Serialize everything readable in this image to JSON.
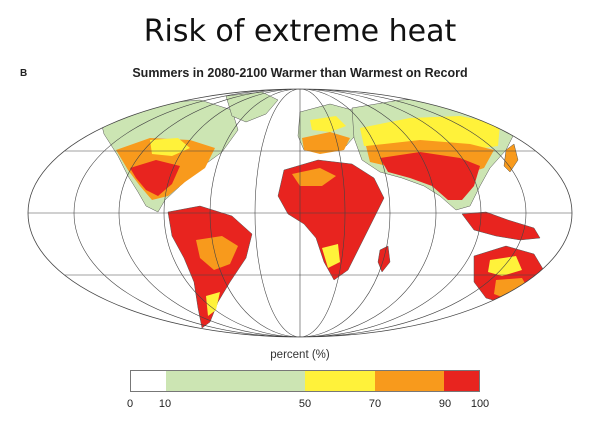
{
  "page_title": "Risk of extreme heat",
  "figure": {
    "panel_letter": "B",
    "map_title": "Summers in 2080-2100 Warmer than Warmest on Record"
  },
  "legend": {
    "label": "percent (%)",
    "classes": [
      {
        "from": 0,
        "to": 10,
        "color": "#ffffff"
      },
      {
        "from": 10,
        "to": 50,
        "color": "#cce5b3"
      },
      {
        "from": 50,
        "to": 70,
        "color": "#fff23a"
      },
      {
        "from": 70,
        "to": 90,
        "color": "#f89a1c"
      },
      {
        "from": 90,
        "to": 100,
        "color": "#e8241f"
      }
    ],
    "ticks": [
      "0",
      "10",
      "50",
      "70",
      "90",
      "100"
    ]
  }
}
